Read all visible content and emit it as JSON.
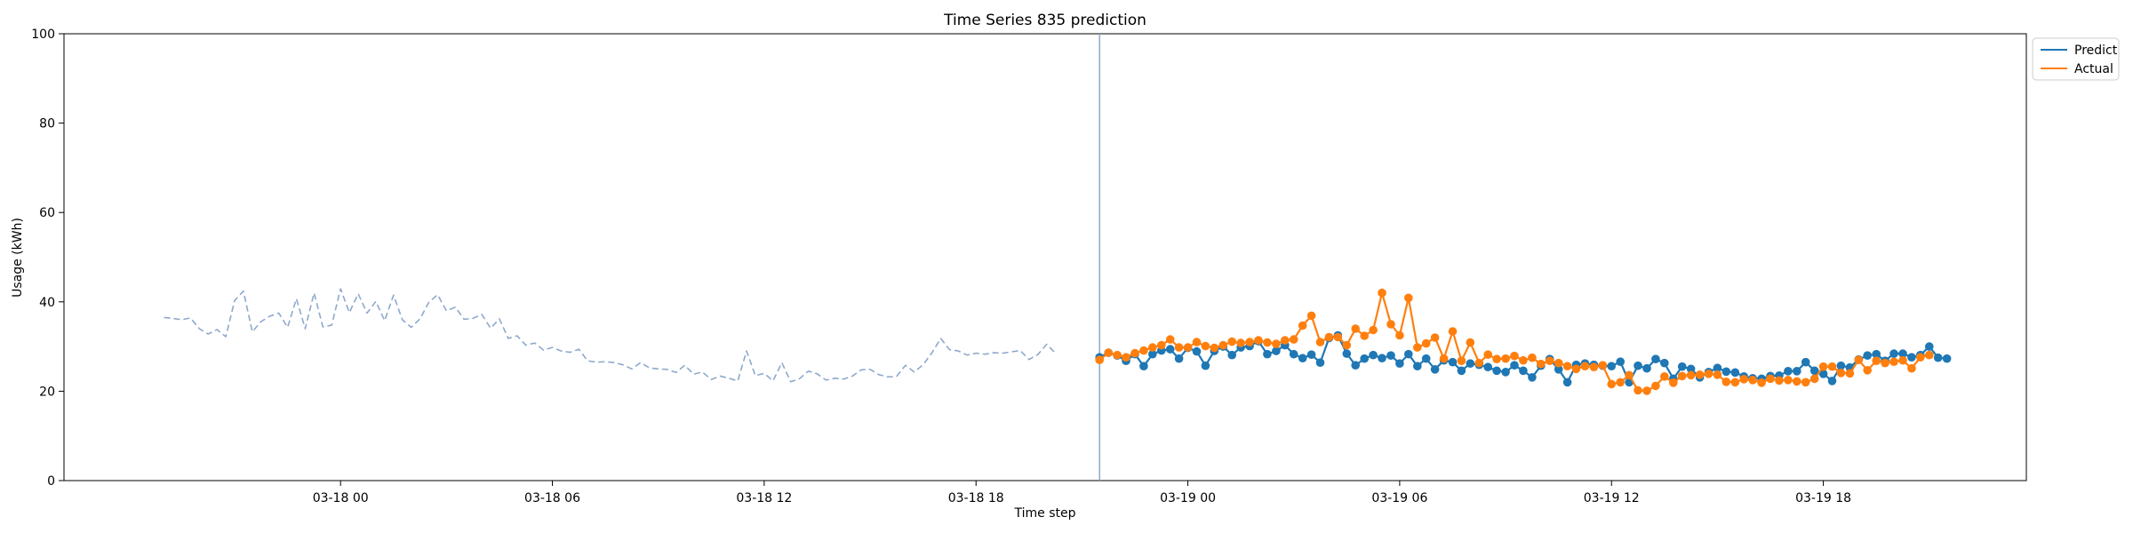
{
  "chart_data": {
    "type": "line",
    "title": "Time Series 835 prediction",
    "xlabel": "Time step",
    "ylabel": "Usage (kWh)",
    "ylim": [
      0,
      100
    ],
    "xlim": [
      "2024-03-17 16:10",
      "2024-03-19 23:45"
    ],
    "yticks": [
      0,
      20,
      40,
      60,
      80,
      100
    ],
    "xticks": [
      {
        "t": "2024-03-18 00:00",
        "label": "03-18 00"
      },
      {
        "t": "2024-03-18 06:00",
        "label": "03-18 06"
      },
      {
        "t": "2024-03-18 12:00",
        "label": "03-18 12"
      },
      {
        "t": "2024-03-18 18:00",
        "label": "03-18 18"
      },
      {
        "t": "2024-03-19 00:00",
        "label": "03-19 00"
      },
      {
        "t": "2024-03-19 06:00",
        "label": "03-19 06"
      },
      {
        "t": "2024-03-19 12:00",
        "label": "03-19 12"
      },
      {
        "t": "2024-03-19 18:00",
        "label": "03-19 18"
      }
    ],
    "grid": false,
    "legend_position": "top-right, outside plot",
    "forecast_start": "2024-03-18 21:30",
    "interval_minutes": 15,
    "series": [
      {
        "name": "",
        "role": "history",
        "color": "#8ea9cc",
        "style": "dashed",
        "start": "2024-03-17 19:00",
        "values": [
          36.5,
          36.3,
          36.0,
          36.4,
          34.0,
          32.8,
          33.8,
          32.2,
          40.3,
          42.4,
          33.3,
          35.6,
          36.8,
          37.5,
          34.3,
          40.7,
          34.0,
          42.0,
          34.4,
          34.8,
          42.9,
          37.6,
          41.8,
          37.5,
          40.1,
          35.8,
          41.5,
          36.0,
          34.3,
          36.2,
          39.9,
          41.6,
          38.0,
          38.8,
          36.1,
          36.3,
          37.2,
          34.1,
          36.2,
          31.8,
          32.4,
          30.3,
          30.8,
          29.2,
          29.8,
          29.0,
          28.7,
          29.4,
          26.8,
          26.5,
          26.6,
          26.4,
          25.9,
          25.0,
          26.4,
          25.2,
          25.0,
          24.9,
          24.2,
          25.8,
          23.8,
          24.3,
          22.6,
          23.4,
          22.9,
          22.3,
          29.0,
          23.5,
          24.0,
          22.3,
          26.4,
          22.1,
          22.8,
          24.5,
          23.9,
          22.5,
          22.9,
          22.7,
          23.4,
          24.8,
          24.9,
          23.7,
          23.2,
          23.3,
          25.8,
          24.3,
          25.9,
          28.6,
          31.8,
          29.3,
          29.0,
          28.1,
          28.5,
          28.3,
          28.6,
          28.5,
          28.8,
          29.1,
          27.1,
          28.2,
          30.5,
          28.5
        ]
      },
      {
        "name": "Predict",
        "role": "forecast",
        "color": "#1f77b4",
        "style": "solid-markers",
        "start": "2024-03-18 21:30",
        "values": [
          27.6,
          28.6,
          28.0,
          26.8,
          28.3,
          25.6,
          28.3,
          29.1,
          29.4,
          27.3,
          29.7,
          28.9,
          25.7,
          29.0,
          30.0,
          28.1,
          29.8,
          30.1,
          31.2,
          28.3,
          29.0,
          30.3,
          28.3,
          27.4,
          28.2,
          26.4,
          31.9,
          32.5,
          28.4,
          25.8,
          27.3,
          28.1,
          27.4,
          28.0,
          26.2,
          28.3,
          25.6,
          27.3,
          24.9,
          26.9,
          26.5,
          24.6,
          26.2,
          25.9,
          25.4,
          24.6,
          24.3,
          25.8,
          24.6,
          23.1,
          25.7,
          27.2,
          24.9,
          22.0,
          25.9,
          26.2,
          25.9,
          25.7,
          25.6,
          26.6,
          22.0,
          25.7,
          25.1,
          27.2,
          26.3,
          22.8,
          25.5,
          25.0,
          23.1,
          24.3,
          25.2,
          24.4,
          24.2,
          23.3,
          22.9,
          22.8,
          23.4,
          23.5,
          24.5,
          24.5,
          26.5,
          24.6,
          23.9,
          22.3,
          25.7,
          25.3,
          27.1,
          28.0,
          28.3,
          26.8,
          28.4,
          28.4,
          27.6,
          28.1,
          30.0,
          27.5,
          27.3
        ]
      },
      {
        "name": "Actual",
        "role": "actual",
        "color": "#ff7f0e",
        "style": "solid-markers",
        "start": "2024-03-18 21:30",
        "values": [
          27.0,
          28.6,
          28.1,
          27.6,
          28.5,
          29.1,
          29.8,
          30.3,
          31.6,
          29.8,
          29.8,
          31.0,
          30.1,
          29.7,
          30.3,
          31.1,
          30.8,
          31.0,
          31.4,
          30.9,
          30.6,
          31.4,
          31.6,
          34.7,
          36.9,
          31.0,
          32.1,
          32.1,
          30.3,
          34.0,
          32.4,
          33.7,
          42.0,
          35.0,
          32.5,
          40.9,
          29.8,
          30.7,
          32.0,
          27.3,
          33.4,
          26.8,
          30.9,
          26.3,
          28.2,
          27.2,
          27.3,
          27.9,
          26.9,
          27.5,
          26.1,
          26.8,
          26.3,
          25.6,
          25.0,
          25.6,
          25.4,
          25.8,
          21.6,
          22.0,
          23.6,
          20.2,
          20.1,
          21.2,
          23.3,
          21.9,
          23.4,
          23.6,
          23.7,
          23.9,
          23.7,
          22.1,
          22.0,
          22.7,
          22.5,
          21.9,
          22.8,
          22.4,
          22.5,
          22.2,
          22.0,
          22.8,
          25.5,
          25.5,
          24.1,
          24.0,
          27.0,
          24.7,
          26.8,
          26.3,
          26.6,
          26.9,
          25.1,
          27.6,
          28.1
        ]
      }
    ]
  }
}
